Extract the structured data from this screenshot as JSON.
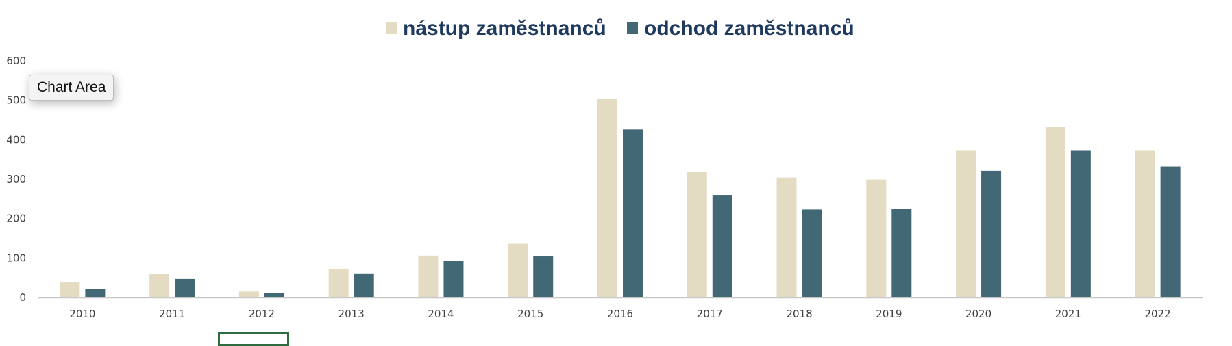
{
  "tooltip": {
    "label": "Chart Area"
  },
  "colors": {
    "nastup": "#e3dbc2",
    "odchod": "#426775",
    "legend_text": "#1f3a5f"
  },
  "chart_data": {
    "type": "bar",
    "title": "",
    "xlabel": "",
    "ylabel": "",
    "legend_position": "top",
    "grid": false,
    "ylim": [
      0,
      600
    ],
    "yticks": [
      "0",
      "100",
      "200",
      "300",
      "400",
      "500",
      "600"
    ],
    "categories": [
      "2010",
      "2011",
      "2012",
      "2013",
      "2014",
      "2015",
      "2016",
      "2017",
      "2018",
      "2019",
      "2020",
      "2021",
      "2022"
    ],
    "series": [
      {
        "name": "nástup zaměstnanců",
        "color": "#e3dbc2",
        "values": [
          38,
          60,
          15,
          73,
          106,
          136,
          503,
          318,
          304,
          299,
          372,
          432,
          372
        ]
      },
      {
        "name": "odchod zaměstnanců",
        "color": "#426775",
        "values": [
          22,
          47,
          11,
          61,
          93,
          104,
          426,
          260,
          223,
          225,
          321,
          372,
          332
        ]
      }
    ]
  }
}
